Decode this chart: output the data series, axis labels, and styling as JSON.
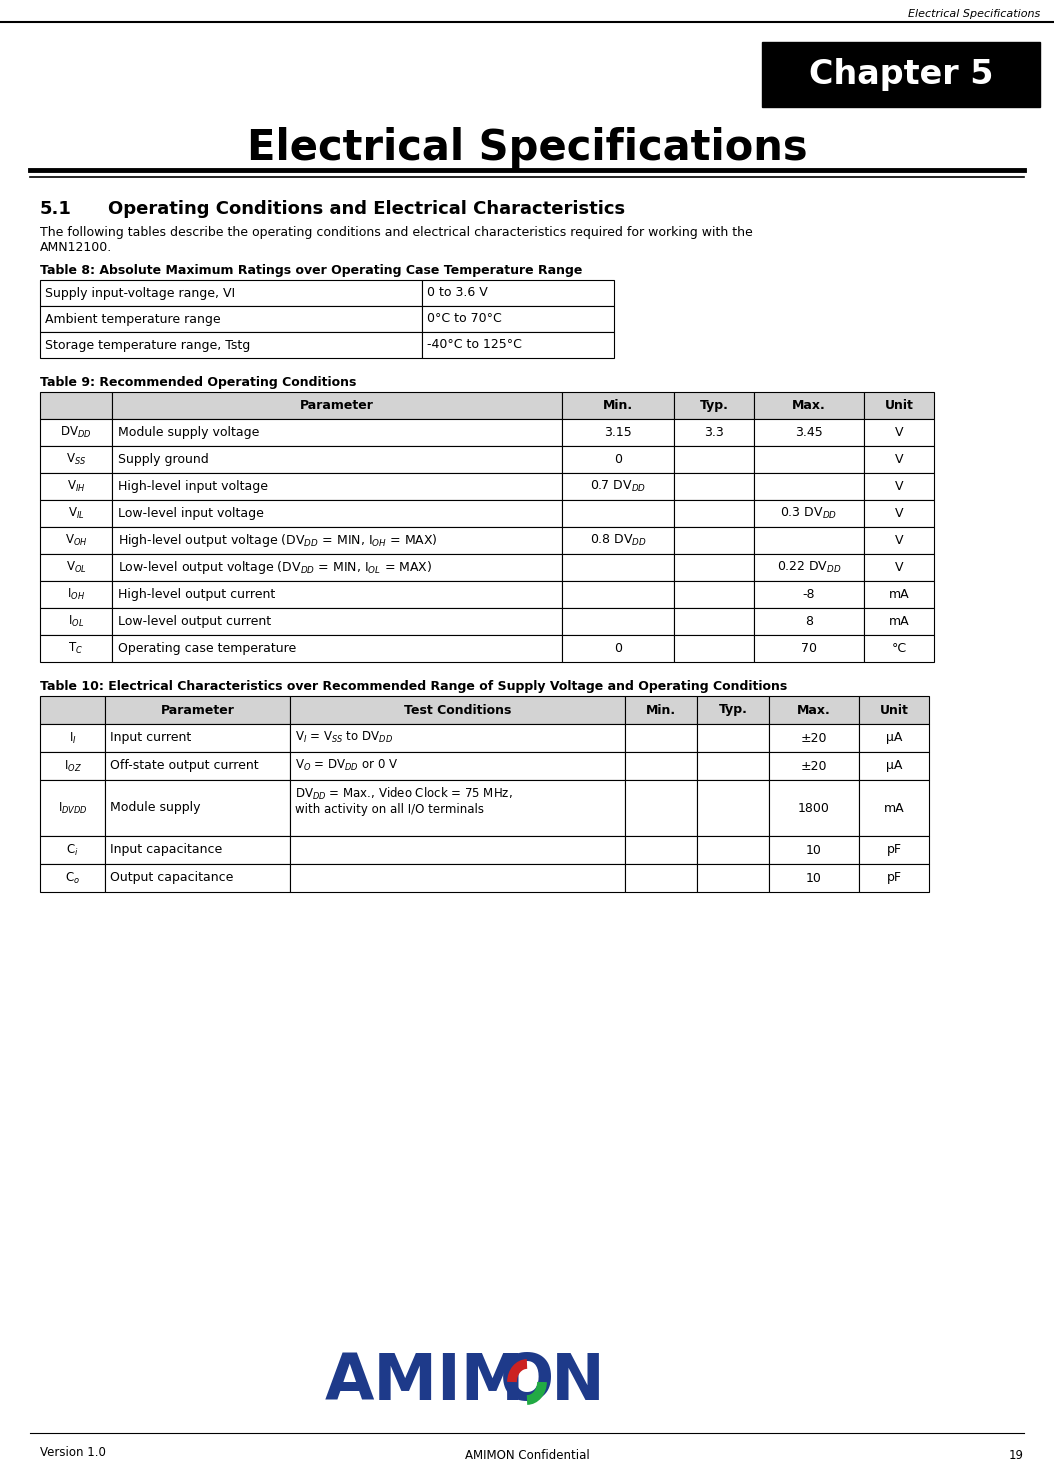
{
  "page_title_header": "Electrical Specifications",
  "chapter_box_text": "Chapter 5",
  "main_title": "Electrical Specifications",
  "section_number": "5.1",
  "section_title": "Operating Conditions and Electrical Characteristics",
  "intro_line1": "The following tables describe the operating conditions and electrical characteristics required for working with the",
  "intro_line2": "AMN12100.",
  "table8_title": "Table 8: Absolute Maximum Ratings over Operating Case Temperature Range",
  "table8_rows": [
    [
      "Supply input-voltage range, VI",
      "0 to 3.6 V"
    ],
    [
      "Ambient temperature range",
      "0°C to 70°C"
    ],
    [
      "Storage temperature range, Tstg",
      "-40°C to 125°C"
    ]
  ],
  "table9_title": "Table 9: Recommended Operating Conditions",
  "table9_headers": [
    "",
    "Parameter",
    "Min.",
    "Typ.",
    "Max.",
    "Unit"
  ],
  "table9_col_widths": [
    72,
    450,
    112,
    80,
    110,
    70
  ],
  "table9_rows": [
    [
      "DV$_{DD}$",
      "Module supply voltage",
      "3.15",
      "3.3",
      "3.45",
      "V"
    ],
    [
      "V$_{SS}$",
      "Supply ground",
      "0",
      "",
      "",
      "V"
    ],
    [
      "V$_{IH}$",
      "High-level input voltage",
      "0.7 DV$_{DD}$",
      "",
      "",
      "V"
    ],
    [
      "V$_{IL}$",
      "Low-level input voltage",
      "",
      "",
      "0.3 DV$_{DD}$",
      "V"
    ],
    [
      "V$_{OH}$",
      "High-level output voltage (DV$_{DD}$ = MIN, I$_{OH}$ = MAX)",
      "0.8 DV$_{DD}$",
      "",
      "",
      "V"
    ],
    [
      "V$_{OL}$",
      "Low-level output voltage (DV$_{DD}$ = MIN, I$_{OL}$ = MAX)",
      "",
      "",
      "0.22 DV$_{DD}$",
      "V"
    ],
    [
      "I$_{OH}$",
      "High-level output current",
      "",
      "",
      "-8",
      "mA"
    ],
    [
      "I$_{OL}$",
      "Low-level output current",
      "",
      "",
      "8",
      "mA"
    ],
    [
      "T$_{C}$",
      "Operating case temperature",
      "0",
      "",
      "70",
      "°C"
    ]
  ],
  "table10_title": "Table 10: Electrical Characteristics over Recommended Range of Supply Voltage and Operating Conditions",
  "table10_headers": [
    "",
    "Parameter",
    "Test Conditions",
    "Min.",
    "Typ.",
    "Max.",
    "Unit"
  ],
  "table10_col_widths": [
    65,
    185,
    335,
    72,
    72,
    90,
    70
  ],
  "table10_rows": [
    [
      "I$_{I}$",
      "Input current",
      "V$_{I}$ = V$_{SS}$ to DV$_{DD}$",
      "",
      "",
      "±20",
      "μA"
    ],
    [
      "I$_{OZ}$",
      "Off-state output current",
      "V$_{O}$ = DV$_{DD}$ or 0 V",
      "",
      "",
      "±20",
      "μA"
    ],
    [
      "I$_{DVDD}$",
      "Module supply",
      "DV$_{DD}$ = Max., Video Clock = 75 MHz,\nwith activity on all I/O terminals",
      "",
      "",
      "1800",
      "mA"
    ],
    [
      "C$_{i}$",
      "Input capacitance",
      "",
      "",
      "",
      "10",
      "pF"
    ],
    [
      "C$_{o}$",
      "Output capacitance",
      "",
      "",
      "",
      "10",
      "pF"
    ]
  ],
  "footer_version": "Version 1.0",
  "footer_confidential": "AMIMON Confidential",
  "footer_page": "19",
  "logo_color": "#1e3a8a",
  "logo_green": "#22aa44",
  "logo_red": "#cc2222",
  "bg_color": "#ffffff"
}
